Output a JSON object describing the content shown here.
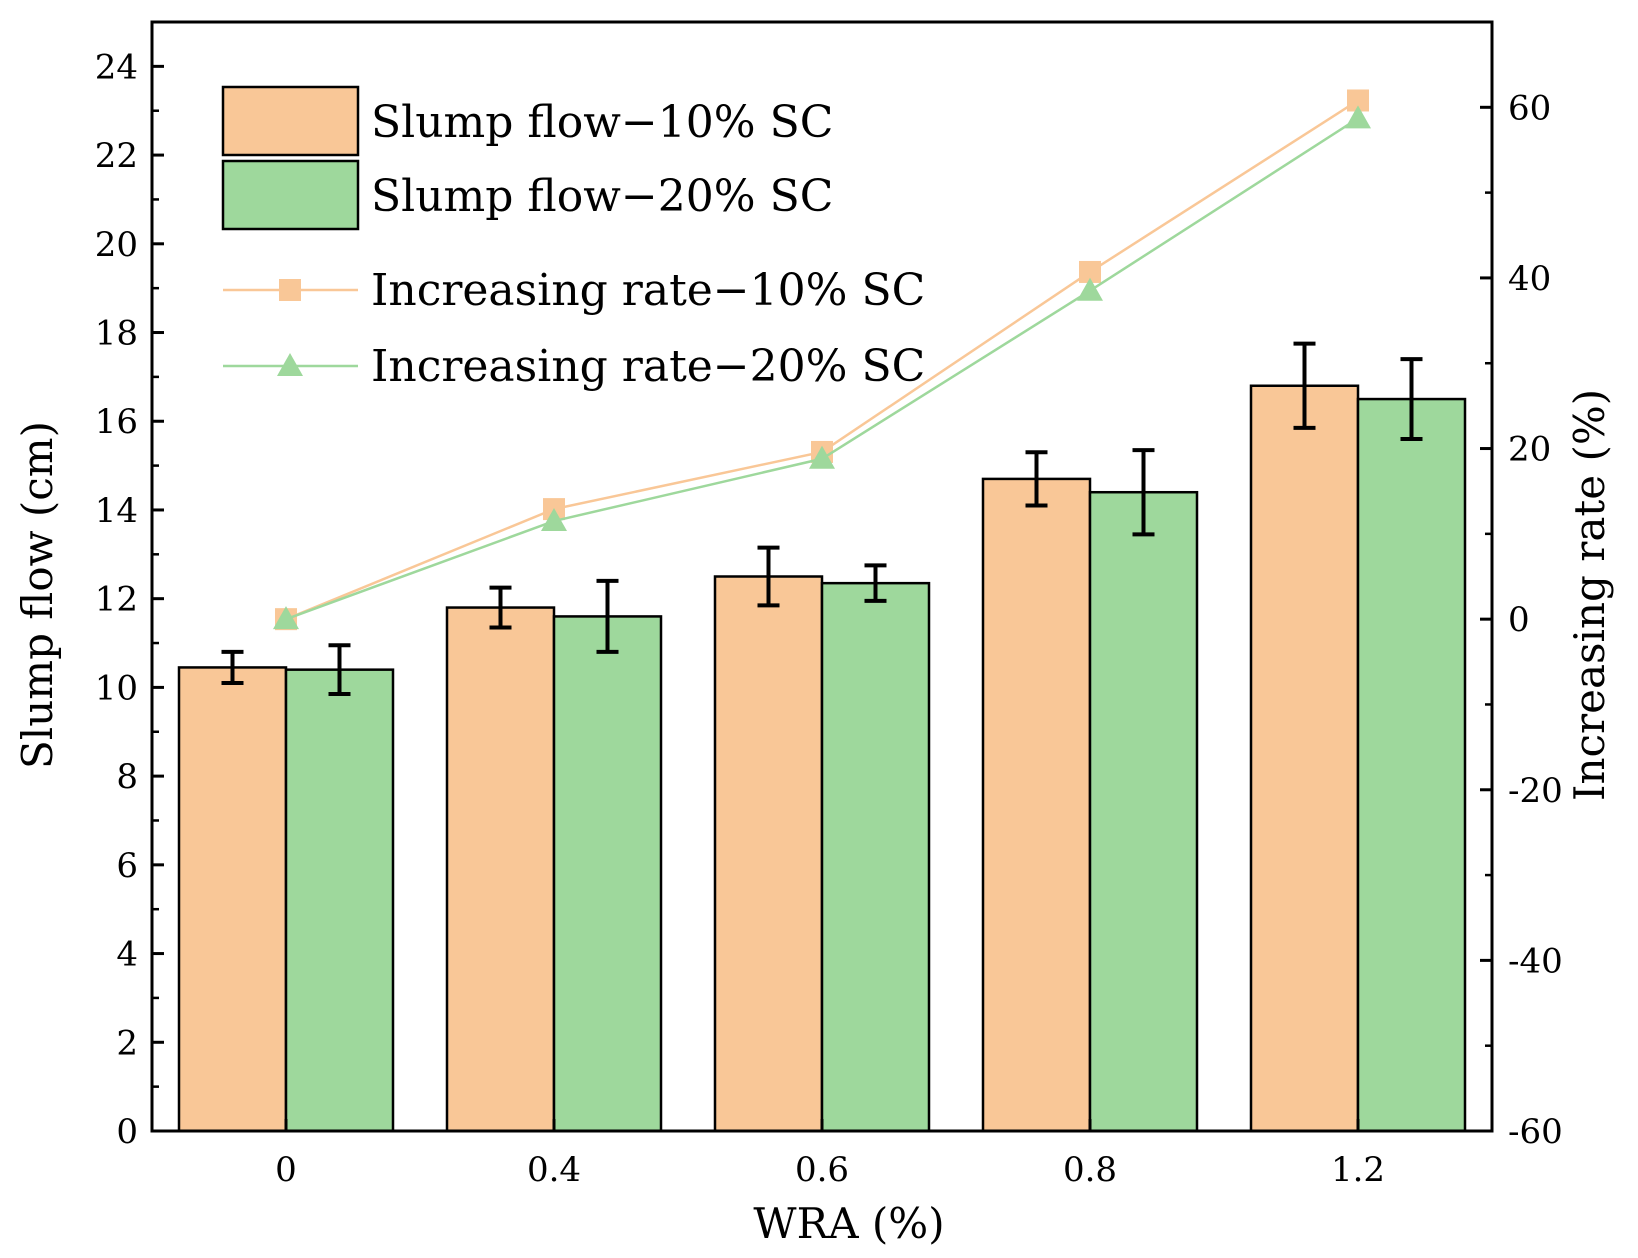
{
  "chart_data": {
    "type": "bar",
    "categories": [
      "0",
      "0.4",
      "0.6",
      "0.8",
      "1.2"
    ],
    "xlabel": "WRA (%)",
    "ylabel": "Slump flow (cm)",
    "y2label": "Increasing rate (%)",
    "ylim": [
      0,
      25
    ],
    "yticks": [
      0,
      2,
      4,
      6,
      8,
      10,
      12,
      14,
      16,
      18,
      20,
      22,
      24
    ],
    "y2lim": [
      -60,
      70
    ],
    "y2ticks": [
      -60,
      -40,
      -20,
      0,
      20,
      40,
      60
    ],
    "legend_position": "top-left",
    "series": [
      {
        "name": "Slump flow−10% SC",
        "kind": "bar",
        "axis": "left",
        "color": "#F9C797",
        "values": [
          10.45,
          11.8,
          12.5,
          14.7,
          16.8
        ],
        "errors": [
          0.35,
          0.45,
          0.65,
          0.6,
          0.95
        ]
      },
      {
        "name": "Slump flow−20% SC",
        "kind": "bar",
        "axis": "left",
        "color": "#9ED89C",
        "values": [
          10.4,
          11.6,
          12.35,
          14.4,
          16.5
        ],
        "errors": [
          0.55,
          0.8,
          0.4,
          0.95,
          0.9
        ]
      },
      {
        "name": "Increasing rate−10% SC",
        "kind": "line",
        "axis": "right",
        "marker": "square",
        "color": "#F9C797",
        "values": [
          0,
          12.9,
          19.6,
          40.7,
          60.8
        ]
      },
      {
        "name": "Increasing rate−20% SC",
        "kind": "line",
        "axis": "right",
        "marker": "triangle",
        "color": "#9ED89C",
        "values": [
          0,
          11.5,
          18.8,
          38.5,
          58.7
        ]
      }
    ]
  }
}
